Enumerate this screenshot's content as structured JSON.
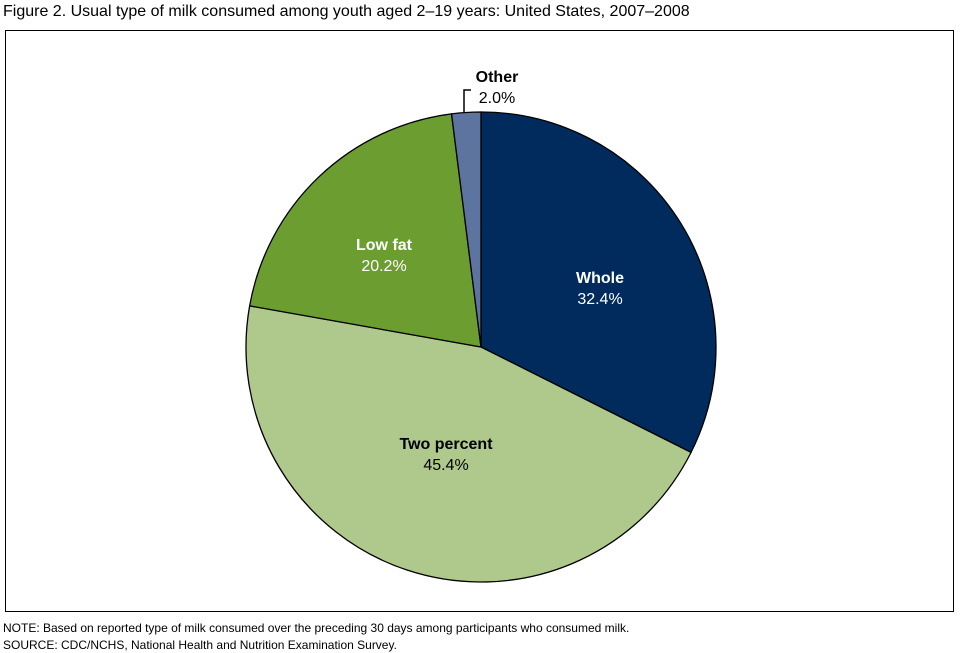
{
  "chart_data": {
    "type": "pie",
    "title": "Figure 2. Usual type of milk consumed among youth aged 2–19 years: United States, 2007–2008",
    "slices": [
      {
        "label": "Whole",
        "value": 32.4,
        "value_label": "32.4%",
        "color": "#002b5c",
        "text_color": "#ffffff"
      },
      {
        "label": "Two percent",
        "value": 45.4,
        "value_label": "45.4%",
        "color": "#afc98d",
        "text_color": "#000000"
      },
      {
        "label": "Low fat",
        "value": 20.2,
        "value_label": "20.2%",
        "color": "#6b9d31",
        "text_color": "#ffffff"
      },
      {
        "label": "Other",
        "value": 2.0,
        "value_label": "2.0%",
        "color": "#5e74a0",
        "text_color": "#000000"
      }
    ],
    "start": "top",
    "direction": "clockwise"
  },
  "notes": {
    "note": "NOTE: Based on reported type of milk consumed over the preceding 30 days among participants who consumed milk.",
    "source": "SOURCE: CDC/NCHS, National Health and Nutrition Examination Survey."
  }
}
